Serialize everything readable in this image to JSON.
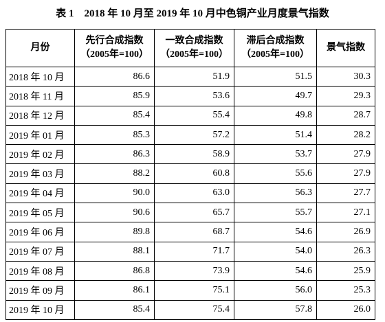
{
  "title": "表 1　2018 年 10 月至 2019 年 10 月中色铜产业月度景气指数",
  "table": {
    "headers": [
      [
        "月份"
      ],
      [
        "先行合成指数",
        "（2005年=100）"
      ],
      [
        "一致合成指数",
        "（2005年=100）"
      ],
      [
        "滞后合成指数",
        "（2005年=100）"
      ],
      [
        "景气指数"
      ]
    ],
    "rows": [
      [
        "2018 年 10 月",
        "86.6",
        "51.9",
        "51.5",
        "30.3"
      ],
      [
        "2018 年 11 月",
        "85.9",
        "53.6",
        "49.7",
        "29.3"
      ],
      [
        "2018 年 12 月",
        "85.4",
        "55.4",
        "49.8",
        "28.7"
      ],
      [
        "2019 年 01 月",
        "85.3",
        "57.2",
        "51.4",
        "28.2"
      ],
      [
        "2019 年 02 月",
        "86.3",
        "58.9",
        "53.7",
        "27.9"
      ],
      [
        "2019 年 03 月",
        "88.2",
        "60.8",
        "55.6",
        "27.9"
      ],
      [
        "2019 年 04 月",
        "90.0",
        "63.0",
        "56.3",
        "27.7"
      ],
      [
        "2019 年 05 月",
        "90.6",
        "65.7",
        "55.7",
        "27.1"
      ],
      [
        "2019 年 06 月",
        "89.8",
        "68.7",
        "54.6",
        "26.9"
      ],
      [
        "2019 年 07 月",
        "88.1",
        "71.7",
        "54.0",
        "26.3"
      ],
      [
        "2019 年 08 月",
        "86.8",
        "73.9",
        "54.6",
        "25.9"
      ],
      [
        "2019 年 09 月",
        "86.1",
        "75.1",
        "56.0",
        "25.3"
      ],
      [
        "2019 年 10 月",
        "85.4",
        "75.4",
        "57.8",
        "26.0"
      ]
    ]
  }
}
